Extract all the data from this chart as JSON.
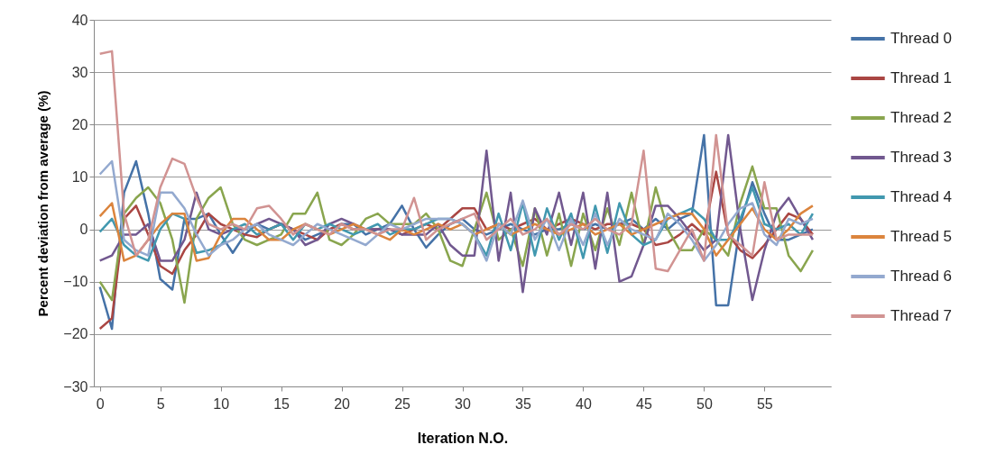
{
  "chart_data": {
    "type": "line",
    "xlabel": "Iteration N.O.",
    "ylabel": "Percent deviation from average (%)",
    "x": [
      0,
      1,
      2,
      3,
      4,
      5,
      6,
      7,
      8,
      9,
      10,
      11,
      12,
      13,
      14,
      15,
      16,
      17,
      18,
      19,
      20,
      21,
      22,
      23,
      24,
      25,
      26,
      27,
      28,
      29,
      30,
      31,
      32,
      33,
      34,
      35,
      36,
      37,
      38,
      39,
      40,
      41,
      42,
      43,
      44,
      45,
      46,
      47,
      48,
      49,
      50,
      51,
      52,
      53,
      54,
      55,
      56,
      57,
      58,
      59
    ],
    "xlim": [
      -0.5,
      60.5
    ],
    "xticks": [
      0,
      5,
      10,
      15,
      20,
      25,
      30,
      35,
      40,
      45,
      50,
      55
    ],
    "ylim": [
      -30,
      40
    ],
    "yticks": [
      -30,
      -20,
      -10,
      0,
      10,
      20,
      30,
      40
    ],
    "grid": "y",
    "legend": "right",
    "line_style": "solid",
    "marker": "none",
    "series": [
      {
        "name": "Thread 0",
        "color": "#4572a7",
        "values": [
          -11,
          -19,
          7,
          13,
          3,
          -9.5,
          -11.5,
          2,
          2,
          3,
          -1,
          -4.5,
          -1,
          1,
          0,
          1,
          0,
          -2,
          -1,
          0,
          1,
          1,
          -1,
          0,
          1,
          4.5,
          0,
          -3.5,
          -1,
          1,
          2,
          0,
          -1,
          0,
          1,
          0,
          -1,
          0,
          0,
          1,
          0,
          1,
          0,
          1,
          2,
          0,
          2,
          0,
          2,
          3,
          18,
          -14.5,
          -14.5,
          1,
          9,
          3,
          -2,
          -2,
          -1,
          0
        ]
      },
      {
        "name": "Thread 1",
        "color": "#aa4643",
        "values": [
          -19,
          -17,
          2,
          4.5,
          -1,
          -7,
          -8.5,
          -4,
          -1,
          3,
          1,
          0,
          -1,
          -1.5,
          0,
          1,
          0,
          -1,
          -2,
          0,
          1,
          0,
          0,
          0,
          0,
          -1,
          0,
          1,
          0,
          2,
          4,
          4,
          0,
          1,
          0,
          1,
          2,
          0,
          1,
          2,
          1,
          0,
          1,
          1,
          1,
          0,
          -3,
          -2.5,
          -1,
          1,
          -1,
          11,
          -1,
          -4,
          -5.5,
          -3,
          0,
          3,
          2,
          -1
        ]
      },
      {
        "name": "Thread 2",
        "color": "#89a54e",
        "values": [
          -10,
          -13.5,
          3,
          6,
          8,
          5,
          -2,
          -14,
          2,
          6,
          8,
          1,
          -2,
          -3,
          -2,
          -1,
          3,
          3,
          7,
          -2,
          -3,
          -1,
          2,
          3,
          1,
          1,
          1,
          3,
          0,
          -6,
          -7,
          0,
          7,
          -2,
          0,
          -7,
          4,
          -5,
          3,
          -7,
          3,
          -4,
          4,
          -3,
          7,
          -3,
          8,
          0,
          -4,
          -4,
          0,
          -2,
          -5,
          5,
          12,
          4,
          4,
          -5,
          -8,
          -4
        ]
      },
      {
        "name": "Thread 3",
        "color": "#71588f",
        "values": [
          -6,
          -5,
          -1,
          -1,
          1,
          -6,
          -6,
          -2,
          7,
          0,
          -1,
          0,
          0,
          1,
          2,
          1,
          0,
          -3,
          -2,
          1,
          2,
          1,
          0,
          0,
          0,
          -1,
          -1,
          -1,
          1,
          -3,
          -5,
          -5,
          15,
          -6,
          7,
          -12,
          4,
          -1,
          7,
          -3,
          7,
          -7.5,
          7,
          -10,
          -9,
          -3,
          4.5,
          4.5,
          2,
          -1,
          -4,
          -2,
          18,
          0,
          -13.5,
          -4,
          3,
          6,
          2,
          -2
        ]
      },
      {
        "name": "Thread 4",
        "color": "#4198af",
        "values": [
          -0.5,
          2,
          -3,
          -5,
          -6,
          0,
          3,
          2,
          -4.5,
          -4,
          -3,
          0,
          1,
          -1,
          0,
          1,
          -2,
          1,
          0,
          1,
          0,
          -1,
          0,
          1,
          -1,
          0,
          0,
          1,
          2,
          2,
          1,
          -1,
          -5,
          3,
          -4,
          5,
          -5,
          4,
          -2,
          3,
          -5.5,
          4.5,
          -4.5,
          5,
          -1,
          -3,
          -2,
          2,
          3,
          4,
          2,
          -2,
          -2,
          2,
          8,
          1,
          0,
          1,
          -1,
          3
        ]
      },
      {
        "name": "Thread 5",
        "color": "#db843d",
        "values": [
          2.5,
          5,
          -6,
          -5,
          -2,
          1,
          3,
          3,
          -6,
          -5.5,
          -1,
          2,
          2,
          0,
          -2,
          -2,
          0,
          1,
          0,
          -1,
          0,
          1,
          0,
          -1,
          -2,
          0,
          -1,
          0,
          1,
          0,
          1,
          -1,
          0,
          1,
          -1,
          0,
          1,
          0,
          -1,
          0,
          1,
          -1,
          0,
          1,
          -1,
          0,
          1,
          2,
          3,
          3,
          0,
          -5,
          -2,
          1,
          4,
          0,
          -2,
          0,
          3,
          4.5
        ]
      },
      {
        "name": "Thread 6",
        "color": "#93a9cf",
        "values": [
          10.5,
          13,
          -2,
          -4,
          -5,
          7,
          7,
          4,
          -1,
          -5,
          -3,
          -2,
          0,
          1,
          -1,
          -2,
          -3,
          -1,
          1,
          0,
          -1,
          -2,
          -3,
          -1,
          1,
          0,
          1,
          2,
          2,
          2,
          1,
          -1,
          -6,
          1,
          -1,
          5.5,
          -2,
          2,
          -4,
          2,
          -3,
          3,
          -3,
          2,
          0,
          -1,
          -2,
          3,
          1,
          -2,
          -6,
          -3,
          1,
          4,
          5,
          -1,
          -3,
          2,
          1,
          2
        ]
      },
      {
        "name": "Thread 7",
        "color": "#d19392",
        "values": [
          33.5,
          34,
          3,
          -5,
          -2,
          8,
          13.5,
          12.5,
          6,
          1,
          0,
          1,
          0,
          4,
          4.5,
          2,
          -1,
          1,
          0,
          -1,
          1,
          0,
          0,
          -1,
          0,
          0,
          6,
          -2,
          0,
          1,
          2,
          3,
          -2,
          0,
          2,
          -1,
          0,
          2,
          -1,
          1,
          0,
          2,
          0,
          -1,
          1,
          15,
          -7.5,
          -8,
          -4,
          0,
          -6,
          18,
          -1,
          -3,
          -5,
          9,
          -2,
          -1,
          -1,
          -1
        ]
      }
    ]
  }
}
